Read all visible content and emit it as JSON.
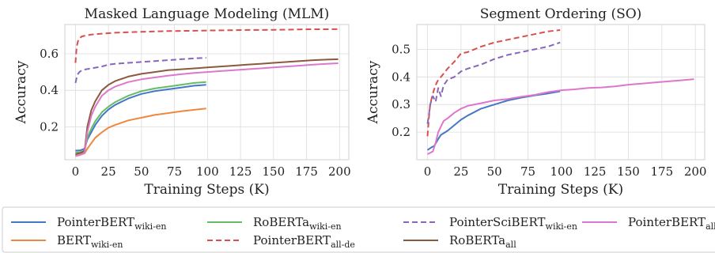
{
  "chart_data": [
    {
      "type": "line",
      "title": "Masked Language Modeling (MLM)",
      "xlabel": "Training Steps (K)",
      "ylabel": "Accuracy",
      "xlim": [
        -8,
        207
      ],
      "ylim": [
        0.02,
        0.76
      ],
      "xticks": [
        0,
        25,
        50,
        75,
        100,
        125,
        150,
        175,
        200
      ],
      "yticks": [
        0.2,
        0.4,
        0.6
      ],
      "grid": true,
      "series": [
        {
          "id": "pb_wiki",
          "x": [
            0,
            3,
            5,
            7,
            9,
            12,
            15,
            20,
            25,
            30,
            40,
            50,
            60,
            70,
            80,
            90,
            99
          ],
          "y": [
            0.07,
            0.07,
            0.075,
            0.08,
            0.13,
            0.17,
            0.21,
            0.26,
            0.295,
            0.32,
            0.355,
            0.38,
            0.395,
            0.405,
            0.415,
            0.425,
            0.43
          ]
        },
        {
          "id": "bert_wiki",
          "x": [
            0,
            3,
            5,
            7,
            9,
            12,
            15,
            20,
            25,
            30,
            40,
            50,
            60,
            70,
            80,
            90,
            99
          ],
          "y": [
            0.04,
            0.045,
            0.05,
            0.055,
            0.08,
            0.11,
            0.14,
            0.17,
            0.195,
            0.21,
            0.235,
            0.25,
            0.265,
            0.275,
            0.285,
            0.293,
            0.3
          ]
        },
        {
          "id": "roberta_wiki",
          "x": [
            0,
            3,
            5,
            7,
            9,
            12,
            15,
            20,
            25,
            30,
            40,
            50,
            60,
            70,
            80,
            90,
            99
          ],
          "y": [
            0.06,
            0.06,
            0.065,
            0.07,
            0.14,
            0.19,
            0.23,
            0.28,
            0.31,
            0.335,
            0.37,
            0.395,
            0.41,
            0.42,
            0.43,
            0.44,
            0.445
          ]
        },
        {
          "id": "pb_allde",
          "x": [
            0,
            1,
            2,
            3,
            5,
            8,
            12,
            20,
            30,
            40,
            50,
            60,
            70,
            80,
            90,
            100,
            110,
            120,
            130,
            140,
            150,
            160,
            170,
            180,
            190,
            199
          ],
          "y": [
            0.55,
            0.64,
            0.67,
            0.685,
            0.695,
            0.7,
            0.705,
            0.71,
            0.715,
            0.718,
            0.72,
            0.722,
            0.724,
            0.725,
            0.726,
            0.727,
            0.728,
            0.729,
            0.73,
            0.73,
            0.731,
            0.732,
            0.733,
            0.734,
            0.734,
            0.735
          ]
        },
        {
          "id": "pscibert_wiki",
          "x": [
            0,
            1,
            2,
            3,
            5,
            8,
            12,
            20,
            25,
            30,
            40,
            50,
            60,
            70,
            80,
            90,
            99
          ],
          "y": [
            0.44,
            0.47,
            0.49,
            0.5,
            0.51,
            0.515,
            0.52,
            0.53,
            0.54,
            0.545,
            0.55,
            0.555,
            0.56,
            0.565,
            0.57,
            0.575,
            0.578
          ]
        },
        {
          "id": "roberta_all",
          "x": [
            0,
            3,
            5,
            7,
            9,
            12,
            15,
            20,
            25,
            30,
            40,
            50,
            60,
            70,
            80,
            90,
            100,
            110,
            120,
            130,
            140,
            150,
            160,
            170,
            180,
            190,
            199
          ],
          "y": [
            0.05,
            0.055,
            0.06,
            0.07,
            0.2,
            0.29,
            0.34,
            0.4,
            0.43,
            0.45,
            0.475,
            0.49,
            0.5,
            0.51,
            0.515,
            0.52,
            0.525,
            0.53,
            0.535,
            0.54,
            0.545,
            0.55,
            0.555,
            0.56,
            0.565,
            0.568,
            0.57
          ]
        },
        {
          "id": "pb_all",
          "x": [
            0,
            3,
            5,
            7,
            9,
            12,
            15,
            20,
            25,
            30,
            40,
            50,
            60,
            70,
            80,
            90,
            100,
            110,
            120,
            130,
            140,
            150,
            160,
            170,
            180,
            190,
            199
          ],
          "y": [
            0.04,
            0.045,
            0.05,
            0.06,
            0.17,
            0.26,
            0.31,
            0.37,
            0.4,
            0.42,
            0.445,
            0.46,
            0.47,
            0.48,
            0.488,
            0.495,
            0.5,
            0.505,
            0.51,
            0.515,
            0.52,
            0.525,
            0.53,
            0.535,
            0.54,
            0.545,
            0.548
          ]
        }
      ]
    },
    {
      "type": "line",
      "title": "Segment Ordering (SO)",
      "xlabel": "Training Steps (K)",
      "ylabel": "Accuracy",
      "xlim": [
        -8,
        207
      ],
      "ylim": [
        0.1,
        0.59
      ],
      "xticks": [
        0,
        25,
        50,
        75,
        100,
        125,
        150,
        175,
        200
      ],
      "yticks": [
        0.2,
        0.3,
        0.4,
        0.5
      ],
      "grid": true,
      "series": [
        {
          "id": "pb_wiki",
          "x": [
            0,
            3,
            5,
            8,
            10,
            15,
            20,
            25,
            30,
            40,
            50,
            60,
            70,
            80,
            90,
            99
          ],
          "y": [
            0.135,
            0.145,
            0.15,
            0.175,
            0.19,
            0.205,
            0.225,
            0.245,
            0.26,
            0.285,
            0.3,
            0.315,
            0.325,
            0.333,
            0.34,
            0.348
          ]
        },
        {
          "id": "pb_allde",
          "x": [
            0,
            1,
            2,
            4,
            6,
            8,
            10,
            15,
            20,
            25,
            30,
            40,
            50,
            60,
            70,
            80,
            90,
            99
          ],
          "y": [
            0.185,
            0.25,
            0.3,
            0.34,
            0.37,
            0.39,
            0.4,
            0.43,
            0.455,
            0.485,
            0.49,
            0.51,
            0.525,
            0.535,
            0.545,
            0.555,
            0.565,
            0.57
          ]
        },
        {
          "id": "pscibert_wiki",
          "x": [
            0,
            1,
            2,
            4,
            6,
            8,
            10,
            12,
            15,
            20,
            25,
            30,
            40,
            50,
            60,
            70,
            80,
            90,
            99
          ],
          "y": [
            0.23,
            0.26,
            0.3,
            0.33,
            0.31,
            0.36,
            0.33,
            0.37,
            0.39,
            0.4,
            0.42,
            0.43,
            0.445,
            0.465,
            0.48,
            0.49,
            0.5,
            0.51,
            0.525
          ]
        },
        {
          "id": "pb_all",
          "x": [
            0,
            2,
            4,
            6,
            8,
            10,
            12,
            15,
            20,
            25,
            30,
            40,
            50,
            60,
            70,
            80,
            90,
            100,
            110,
            120,
            130,
            140,
            150,
            160,
            170,
            180,
            190,
            199
          ],
          "y": [
            0.12,
            0.125,
            0.13,
            0.16,
            0.2,
            0.22,
            0.24,
            0.25,
            0.27,
            0.285,
            0.295,
            0.305,
            0.315,
            0.32,
            0.328,
            0.335,
            0.345,
            0.352,
            0.355,
            0.36,
            0.362,
            0.366,
            0.372,
            0.376,
            0.38,
            0.384,
            0.388,
            0.392
          ]
        }
      ]
    }
  ],
  "series_styles": {
    "pb_wiki": {
      "color": "#4477c4",
      "dash": false
    },
    "bert_wiki": {
      "color": "#ee8840",
      "dash": false
    },
    "roberta_wiki": {
      "color": "#66bb66",
      "dash": false
    },
    "pscibert_wiki": {
      "color": "#8866bb",
      "dash": true
    },
    "pb_allde": {
      "color": "#d94f4f",
      "dash": true
    },
    "roberta_all": {
      "color": "#8b5a3c",
      "dash": false
    },
    "pb_all": {
      "color": "#dd77cc",
      "dash": false
    }
  },
  "legend": {
    "placement": "bottom",
    "entries": [
      {
        "series": "pb_wiki",
        "name": "PointerBERT",
        "sub": "wiki-en"
      },
      {
        "series": "bert_wiki",
        "name": "BERT",
        "sub": "wiki-en"
      },
      {
        "series": "roberta_wiki",
        "name": "RoBERTa",
        "sub": "wiki-en"
      },
      {
        "series": "pb_allde",
        "name": "PointerBERT",
        "sub": "all-de"
      },
      {
        "series": "pscibert_wiki",
        "name": "PointerSciBERT",
        "sub": "wiki-en"
      },
      {
        "series": "roberta_all",
        "name": "RoBERTa",
        "sub": "all"
      },
      {
        "series": "pb_all",
        "name": "PointerBERT",
        "sub": "all"
      }
    ]
  }
}
